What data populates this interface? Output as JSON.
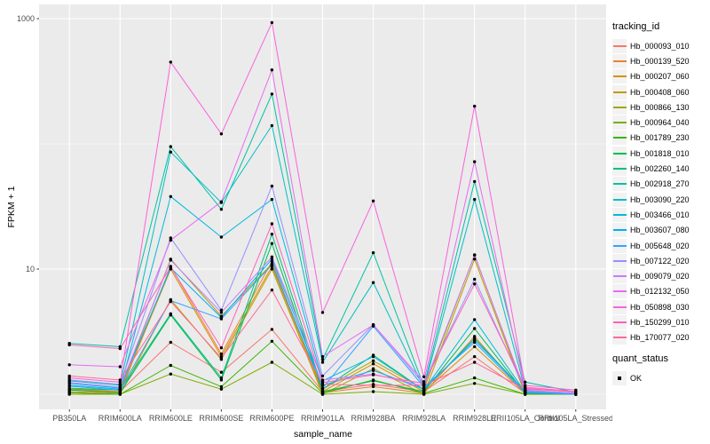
{
  "figure": {
    "y_axis_title": "FPKM + 1",
    "x_axis_title": "sample_name"
  },
  "legend": {
    "tracking_title": "tracking_id",
    "quant_title": "quant_status",
    "quant_entries": [
      {
        "label": "OK"
      }
    ]
  },
  "colors": {
    "panel_bg": "#EBEBEB",
    "grid_major": "#FFFFFF",
    "grid_minor": "#FFFFFF",
    "tick_text": "#4D4D4D",
    "tick_mark": "#333333",
    "point": "#000000",
    "legend_key_bg": "#F2F2F2"
  },
  "chart_data": {
    "type": "line",
    "title": "",
    "xlabel": "sample_name",
    "ylabel": "FPKM + 1",
    "y_scale": "log10",
    "grid": true,
    "legend_position": "right",
    "ylim": [
      0.72,
      1300
    ],
    "y_ticks": [
      1000,
      10
    ],
    "y_tick_labels": [
      "1000",
      "10"
    ],
    "y_minor_gridlines": [
      100,
      1
    ],
    "point_shape": "filled-circle",
    "quant_status": "OK",
    "categories": [
      "PB350LA",
      "RRIM600LA",
      "RRIM600LE",
      "RRIM600SE",
      "RRIM600PE",
      "RRIM901LA",
      "RRIM928BA",
      "RRIM928LA",
      "RRIM928LE",
      "RRII105LA_Control",
      "RRII105LA_Stressed"
    ],
    "series": [
      {
        "name": "Hb_000093_010",
        "color": "#F8766D",
        "values": [
          1.1,
          1.05,
          2.6,
          1.5,
          3.3,
          1.05,
          1.2,
          1.05,
          2.0,
          1.02,
          1.0
        ]
      },
      {
        "name": "Hb_000139_520",
        "color": "#EA8331",
        "values": [
          1.05,
          1.02,
          10.5,
          2.1,
          11.5,
          1.03,
          1.15,
          1.02,
          2.9,
          1.0,
          1.0
        ]
      },
      {
        "name": "Hb_000207_060",
        "color": "#D89000",
        "values": [
          1.08,
          1.05,
          10.0,
          2.0,
          10.5,
          1.05,
          1.75,
          1.05,
          2.4,
          1.02,
          1.0
        ]
      },
      {
        "name": "Hb_000408_060",
        "color": "#C09B00",
        "values": [
          1.03,
          1.0,
          5.7,
          1.9,
          10.0,
          1.0,
          1.6,
          1.0,
          12.0,
          1.0,
          1.0
        ]
      },
      {
        "name": "Hb_000866_130",
        "color": "#A3A500",
        "values": [
          1.1,
          1.08,
          12.0,
          4.2,
          11.0,
          1.1,
          1.85,
          1.1,
          13.0,
          1.03,
          1.0
        ]
      },
      {
        "name": "Hb_000964_040",
        "color": "#7CAE00",
        "values": [
          1.0,
          1.0,
          1.45,
          1.1,
          1.8,
          1.0,
          1.05,
          1.0,
          1.22,
          1.0,
          1.0
        ]
      },
      {
        "name": "Hb_001789_230",
        "color": "#39B600",
        "values": [
          1.03,
          1.0,
          1.7,
          1.15,
          2.65,
          1.02,
          1.3,
          1.02,
          1.35,
          1.0,
          1.0
        ]
      },
      {
        "name": "Hb_001818_010",
        "color": "#00BB4E",
        "values": [
          1.08,
          1.03,
          4.3,
          1.3,
          16.0,
          1.05,
          1.28,
          1.05,
          3.35,
          1.02,
          1.0
        ]
      },
      {
        "name": "Hb_002260_140",
        "color": "#00BF7D",
        "values": [
          1.12,
          1.08,
          4.4,
          1.35,
          19.0,
          1.1,
          2.05,
          1.08,
          2.8,
          1.05,
          1.0
        ]
      },
      {
        "name": "Hb_002918_270",
        "color": "#00C1A3",
        "values": [
          2.55,
          2.4,
          95.0,
          30.0,
          250,
          1.9,
          13.5,
          1.16,
          50.0,
          1.25,
          1.04
        ]
      },
      {
        "name": "Hb_003090_220",
        "color": "#00BFC4",
        "values": [
          1.28,
          1.18,
          86.0,
          34.0,
          140,
          1.8,
          7.8,
          1.12,
          36.0,
          1.08,
          1.0
        ]
      },
      {
        "name": "Hb_003466_010",
        "color": "#00BAE0",
        "values": [
          1.18,
          1.1,
          38.0,
          18.0,
          36.0,
          1.28,
          2.0,
          1.08,
          3.95,
          1.04,
          1.0
        ]
      },
      {
        "name": "Hb_003607_080",
        "color": "#00B0F6",
        "values": [
          1.22,
          1.12,
          10.2,
          4.1,
          12.0,
          1.18,
          1.55,
          1.1,
          2.7,
          1.06,
          1.0
        ]
      },
      {
        "name": "Hb_005648_020",
        "color": "#35A2FF",
        "values": [
          1.16,
          1.08,
          5.6,
          4.0,
          10.8,
          1.12,
          3.5,
          1.14,
          2.6,
          1.03,
          1.0
        ]
      },
      {
        "name": "Hb_007122_020",
        "color": "#9590FF",
        "values": [
          1.3,
          1.2,
          17.7,
          4.7,
          46.0,
          1.4,
          3.6,
          1.2,
          8.3,
          1.08,
          1.02
        ]
      },
      {
        "name": "Hb_009079_020",
        "color": "#C77CFF",
        "values": [
          1.24,
          1.14,
          11.8,
          4.5,
          12.5,
          1.3,
          1.45,
          1.16,
          12.9,
          1.06,
          1.02
        ]
      },
      {
        "name": "Hb_012132_050",
        "color": "#E76BF3",
        "values": [
          1.72,
          1.66,
          17.0,
          34.5,
          390,
          2.0,
          3.58,
          1.26,
          72.0,
          1.12,
          1.04
        ]
      },
      {
        "name": "Hb_050898_030",
        "color": "#FA62DB",
        "values": [
          1.35,
          1.25,
          450,
          120,
          930,
          4.5,
          35.0,
          1.38,
          200,
          1.18,
          1.08
        ]
      },
      {
        "name": "Hb_150299_010",
        "color": "#FF62BC",
        "values": [
          2.48,
          2.32,
          10.4,
          2.35,
          23.0,
          1.24,
          1.43,
          1.22,
          7.6,
          1.14,
          1.05
        ]
      },
      {
        "name": "Hb_170077_020",
        "color": "#FF6A98",
        "values": [
          1.4,
          1.3,
          5.5,
          1.95,
          6.8,
          1.2,
          1.18,
          1.18,
          1.8,
          1.1,
          1.05
        ]
      }
    ]
  }
}
